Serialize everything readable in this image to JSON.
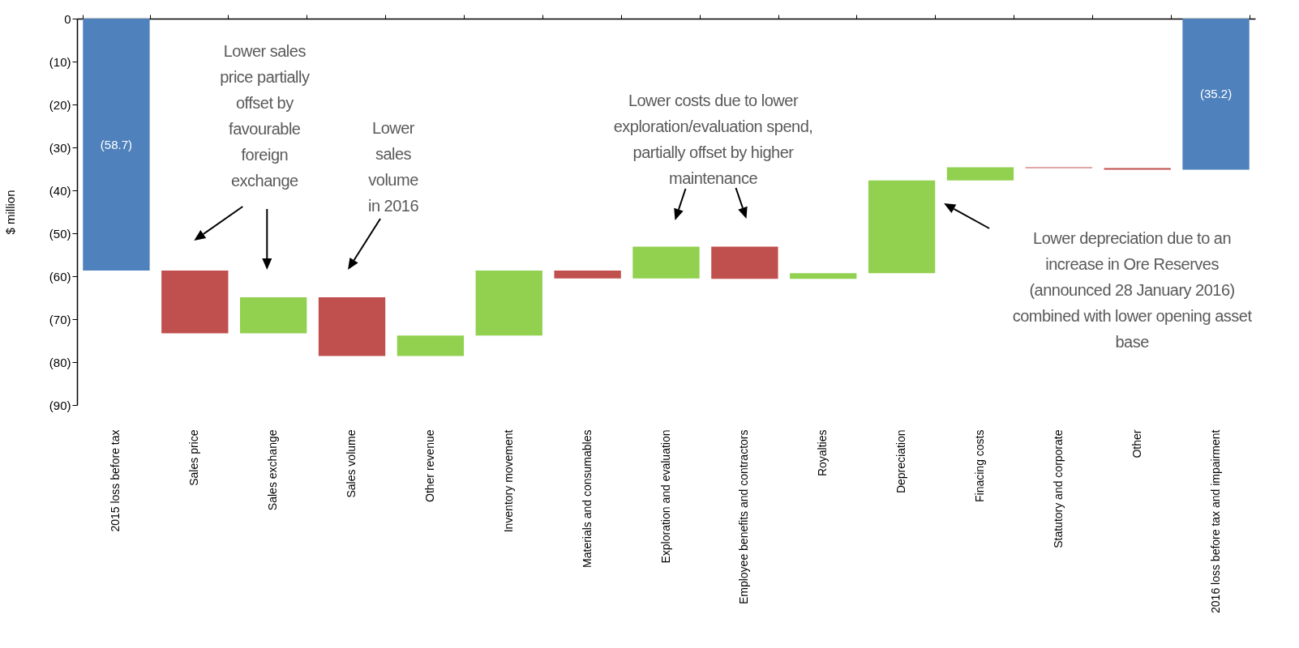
{
  "chart_data": {
    "type": "bar",
    "ylabel": "$ million",
    "categories": [
      "2015 loss before tax",
      "Sales price",
      "Sales exchange",
      "Sales volume",
      "Other revenue",
      "Inventory movement",
      "Materials and consumables",
      "Exploration and evaluation",
      "Employee benefits and contractors",
      "Royalties",
      "Depreciation",
      "Finacing costs",
      "Statutory and corporate",
      "Other",
      "2016 loss before tax and impairment"
    ],
    "base": [
      0,
      -58.7,
      -73.3,
      -64.9,
      -78.6,
      -73.8,
      -58.7,
      -60.5,
      -53.1,
      -60.6,
      -59.3,
      -37.7,
      -34.6,
      -34.8,
      0
    ],
    "values": [
      -58.7,
      -14.6,
      8.4,
      -13.7,
      4.8,
      15.1,
      -1.8,
      7.4,
      -7.5,
      1.3,
      21.6,
      3.1,
      -0.2,
      -0.4,
      -35.2
    ],
    "colors": [
      "#4f81bd",
      "#c0504d",
      "#92d050",
      "#c0504d",
      "#92d050",
      "#92d050",
      "#c0504d",
      "#92d050",
      "#c0504d",
      "#92d050",
      "#92d050",
      "#92d050",
      "#c0504d",
      "#c0504d",
      "#4f81bd"
    ],
    "value_labels": [
      "(58.7)",
      null,
      null,
      null,
      null,
      null,
      null,
      null,
      null,
      null,
      null,
      null,
      null,
      null,
      "(35.2)"
    ],
    "ylim": [
      -90,
      0
    ],
    "yticks": [
      0,
      {
        "value": -10,
        "label": "(10)"
      },
      {
        "value": -20,
        "label": "(20)"
      },
      {
        "value": -30,
        "label": "(30)"
      },
      {
        "value": -40,
        "label": "(40)"
      },
      {
        "value": -50,
        "label": "(50)"
      },
      {
        "value": -60,
        "label": "(60)"
      },
      {
        "value": -70,
        "label": "(70)"
      },
      {
        "value": -80,
        "label": "(80)"
      },
      {
        "value": -90,
        "label": "(90)"
      }
    ],
    "grid": false,
    "annotations": [
      "Lower sales price partially offset by favourable foreign exchange",
      "Lower sales volume in 2016",
      "Lower costs due to lower exploration/evaluation spend, partially offset by higher maintenance",
      "Lower depreciation due to an increase in Ore Reserves (announced 28 January 2016) combined with lower opening asset base"
    ]
  }
}
